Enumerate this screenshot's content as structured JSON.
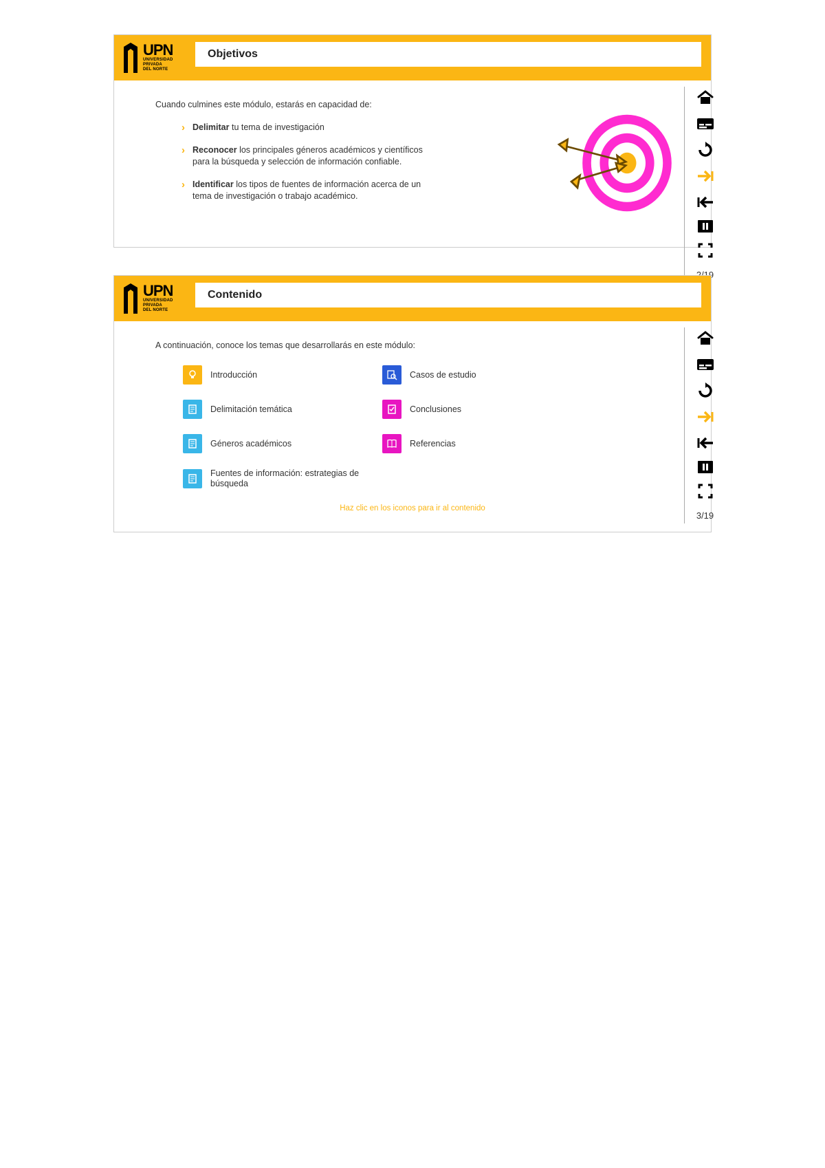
{
  "brand": {
    "name": "UPN",
    "sub1": "UNIVERSIDAD",
    "sub2": "PRIVADA",
    "sub3": "DEL NORTE",
    "accent": "#fbb614",
    "black": "#000000"
  },
  "slide1": {
    "title": "Objetivos",
    "intro": "Cuando culmines este módulo, estarás en capacidad de:",
    "bullets": [
      {
        "bold": "Delimitar",
        "rest": " tu tema de investigación"
      },
      {
        "bold": "Reconocer",
        "rest": " los principales géneros académicos y científicos para la búsqueda y selección de información confiable."
      },
      {
        "bold": "Identificar",
        "rest": " los tipos de fuentes de información acerca de un tema de investigación o trabajo académico."
      }
    ],
    "page": "2/19",
    "target_colors": {
      "ring1": "#ff2bd0",
      "ring2": "#ffffff",
      "ring3": "#ff2bd0",
      "ring4": "#ffffff",
      "bull": "#fbb614",
      "arrow": "#fbb614",
      "shaft": "#6b4a00"
    }
  },
  "slide2": {
    "title": "Contenido",
    "intro": "A continuación, conoce los temas que desarrollarás en este módulo:",
    "hint": "Haz clic en los iconos para ir al contenido",
    "page": "3/19",
    "topics_left": [
      {
        "label": "Introducción",
        "color": "#fbb614",
        "icon": "bulb"
      },
      {
        "label": "Delimitación temática",
        "color": "#39b6e8",
        "icon": "doc"
      },
      {
        "label": "Géneros académicos",
        "color": "#39b6e8",
        "icon": "doc"
      },
      {
        "label": "Fuentes de información: estrategias de búsqueda",
        "color": "#39b6e8",
        "icon": "doc"
      }
    ],
    "topics_right": [
      {
        "label": "Casos de estudio",
        "color": "#2a5bd7",
        "icon": "search"
      },
      {
        "label": "Conclusiones",
        "color": "#e815c1",
        "icon": "check"
      },
      {
        "label": "Referencias",
        "color": "#e815c1",
        "icon": "book"
      }
    ]
  },
  "nav": {
    "items": [
      {
        "name": "home-icon",
        "kind": "home"
      },
      {
        "name": "subtitles-icon",
        "kind": "subtitles"
      },
      {
        "name": "reload-icon",
        "kind": "reload"
      },
      {
        "name": "next-icon",
        "kind": "next",
        "accent": true
      },
      {
        "name": "prev-icon",
        "kind": "prev"
      },
      {
        "name": "pause-icon",
        "kind": "pause",
        "boxed": true
      },
      {
        "name": "fullscreen-icon",
        "kind": "fullscreen"
      }
    ]
  }
}
